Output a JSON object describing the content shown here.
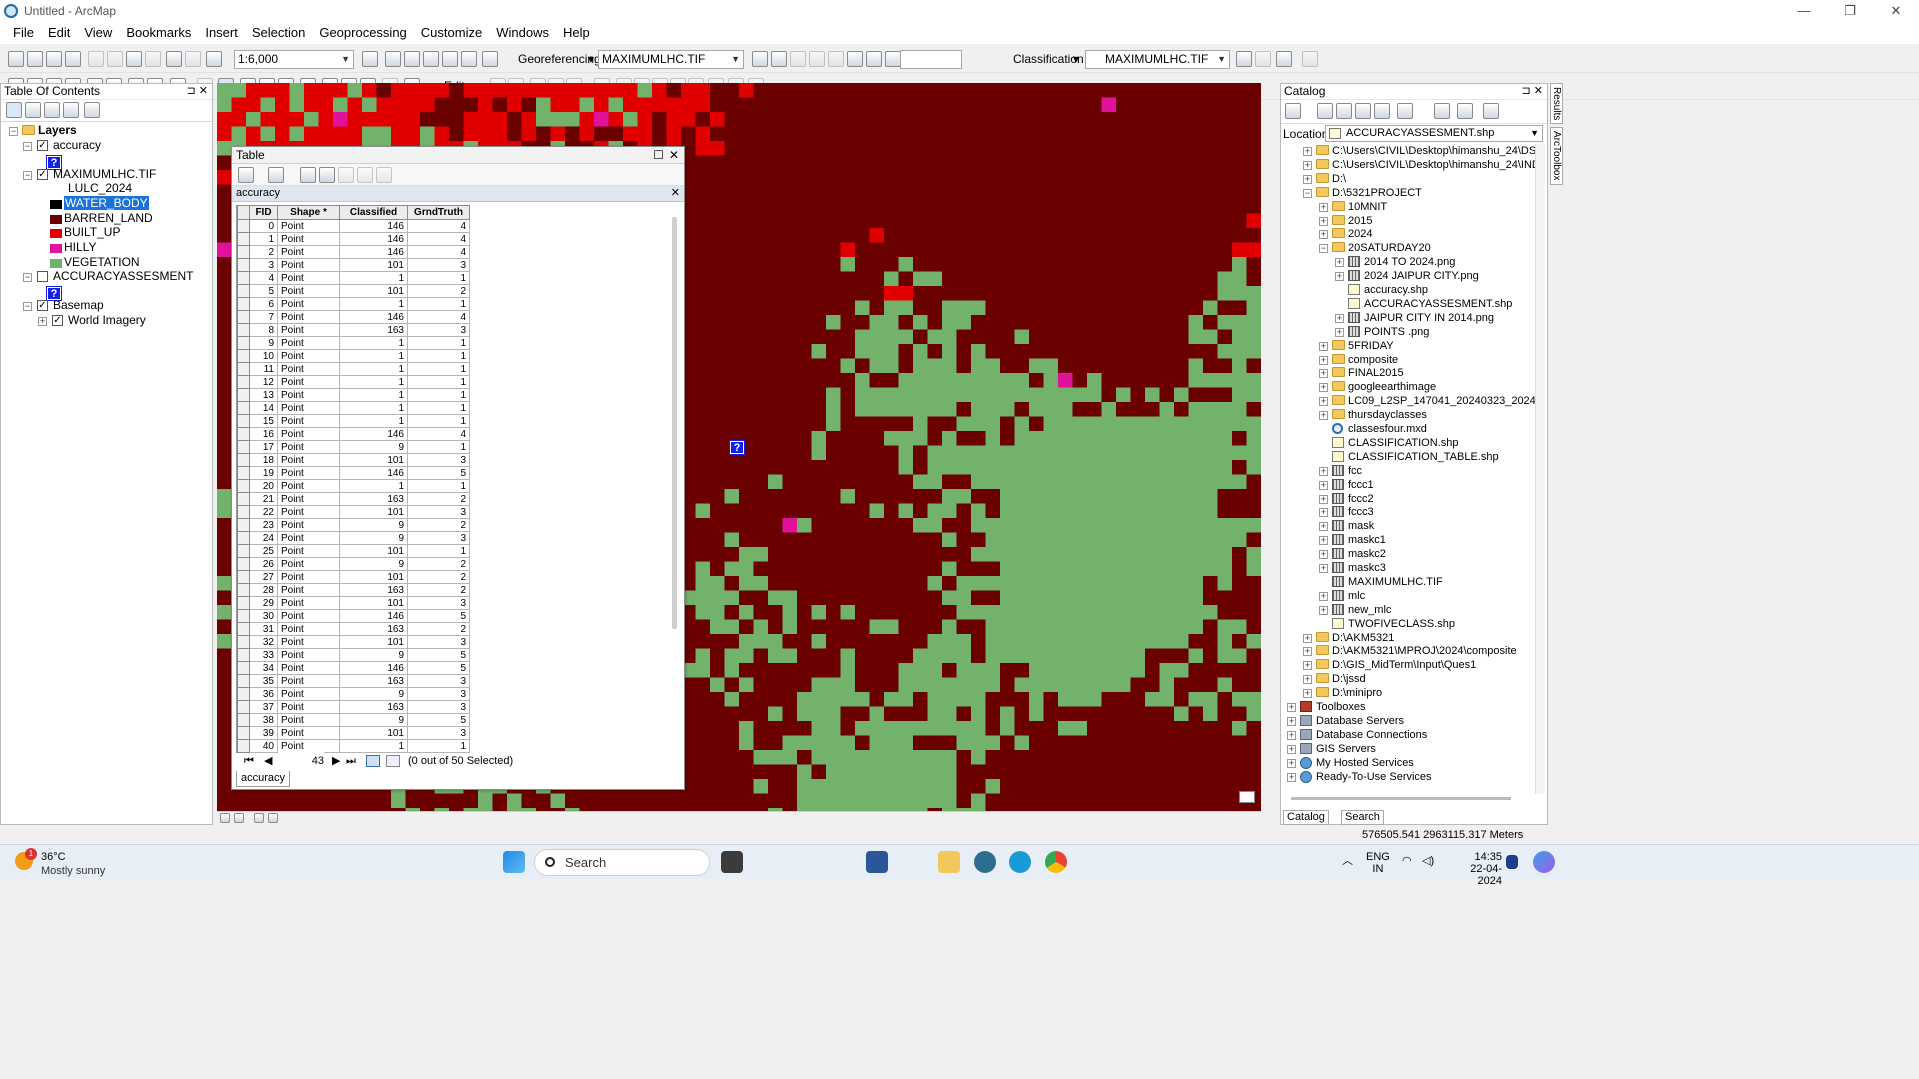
{
  "window": {
    "title": "Untitled - ArcMap",
    "controls": [
      "—",
      "❐",
      "✕"
    ]
  },
  "menu": [
    "File",
    "Edit",
    "View",
    "Bookmarks",
    "Insert",
    "Selection",
    "Geoprocessing",
    "Customize",
    "Windows",
    "Help"
  ],
  "toolbar": {
    "scale": "1:6,000",
    "georeferencing_label": "Georeferencing",
    "georef_layer": "MAXIMUMLHC.TIF",
    "classification_label": "Classification",
    "classification_layer": "MAXIMUMLHC.TIF",
    "editor_label": "Editor"
  },
  "toc": {
    "title": "Table Of Contents",
    "root": "Layers",
    "layers": [
      {
        "name": "accuracy",
        "checked": true
      },
      {
        "name": "MAXIMUMLHC.TIF",
        "checked": true,
        "field": "LULC_2024"
      },
      {
        "name": "ACCURACYASSESMENT",
        "checked": false
      },
      {
        "name": "Basemap",
        "checked": true
      },
      {
        "name": "World Imagery",
        "checked": true
      }
    ],
    "classes": [
      {
        "label": "WATER_BODY",
        "color": "#000000",
        "selected": true
      },
      {
        "label": "BARREN_LAND",
        "color": "#6b0000"
      },
      {
        "label": "BUILT_UP",
        "color": "#e00000"
      },
      {
        "label": "HILLY",
        "color": "#e0119b"
      },
      {
        "label": "VEGETATION",
        "color": "#72b26b"
      }
    ]
  },
  "table": {
    "title": "Table",
    "layer_tab": "accuracy",
    "columns": [
      "FID",
      "Shape *",
      "Classified",
      "GrndTruth"
    ],
    "rows": [
      [
        0,
        "Point",
        146,
        4
      ],
      [
        1,
        "Point",
        146,
        4
      ],
      [
        2,
        "Point",
        146,
        4
      ],
      [
        3,
        "Point",
        101,
        3
      ],
      [
        4,
        "Point",
        1,
        1
      ],
      [
        5,
        "Point",
        101,
        2
      ],
      [
        6,
        "Point",
        1,
        1
      ],
      [
        7,
        "Point",
        146,
        4
      ],
      [
        8,
        "Point",
        163,
        3
      ],
      [
        9,
        "Point",
        1,
        1
      ],
      [
        10,
        "Point",
        1,
        1
      ],
      [
        11,
        "Point",
        1,
        1
      ],
      [
        12,
        "Point",
        1,
        1
      ],
      [
        13,
        "Point",
        1,
        1
      ],
      [
        14,
        "Point",
        1,
        1
      ],
      [
        15,
        "Point",
        1,
        1
      ],
      [
        16,
        "Point",
        146,
        4
      ],
      [
        17,
        "Point",
        9,
        1
      ],
      [
        18,
        "Point",
        101,
        3
      ],
      [
        19,
        "Point",
        146,
        5
      ],
      [
        20,
        "Point",
        1,
        1
      ],
      [
        21,
        "Point",
        163,
        2
      ],
      [
        22,
        "Point",
        101,
        3
      ],
      [
        23,
        "Point",
        9,
        2
      ],
      [
        24,
        "Point",
        9,
        3
      ],
      [
        25,
        "Point",
        101,
        1
      ],
      [
        26,
        "Point",
        9,
        2
      ],
      [
        27,
        "Point",
        101,
        2
      ],
      [
        28,
        "Point",
        163,
        2
      ],
      [
        29,
        "Point",
        101,
        3
      ],
      [
        30,
        "Point",
        146,
        5
      ],
      [
        31,
        "Point",
        163,
        2
      ],
      [
        32,
        "Point",
        101,
        3
      ],
      [
        33,
        "Point",
        9,
        5
      ],
      [
        34,
        "Point",
        146,
        5
      ],
      [
        35,
        "Point",
        163,
        3
      ],
      [
        36,
        "Point",
        9,
        3
      ],
      [
        37,
        "Point",
        163,
        3
      ],
      [
        38,
        "Point",
        9,
        5
      ],
      [
        39,
        "Point",
        101,
        3
      ],
      [
        40,
        "Point",
        1,
        1
      ]
    ],
    "record_number": "43",
    "selection_status": "(0 out of 50 Selected)",
    "bottom_tab": "accuracy"
  },
  "catalog": {
    "title": "Catalog",
    "location_label": "Location:",
    "location": "ACCURACYASSESMENT.shp",
    "items": [
      {
        "label": "C:\\Users\\CIVIL\\Desktop\\himanshu_24\\DSMW",
        "icon": "folder",
        "level": 1,
        "exp": "+"
      },
      {
        "label": "C:\\Users\\CIVIL\\Desktop\\himanshu_24\\IND_adm",
        "icon": "folder",
        "level": 1,
        "exp": "+"
      },
      {
        "label": "D:\\",
        "icon": "folder",
        "level": 1,
        "exp": "+"
      },
      {
        "label": "D:\\5321PROJECT",
        "icon": "folder",
        "level": 1,
        "exp": "-"
      },
      {
        "label": "10MNIT",
        "icon": "folder",
        "level": 2,
        "exp": "+"
      },
      {
        "label": "2015",
        "icon": "folder",
        "level": 2,
        "exp": "+"
      },
      {
        "label": "2024",
        "icon": "folder",
        "level": 2,
        "exp": "+"
      },
      {
        "label": "20SATURDAY20",
        "icon": "folder",
        "level": 2,
        "exp": "-"
      },
      {
        "label": "2014 TO 2024.png",
        "icon": "raster",
        "level": 3,
        "exp": "+"
      },
      {
        "label": "2024 JAIPUR CITY.png",
        "icon": "raster",
        "level": 3,
        "exp": "+"
      },
      {
        "label": "accuracy.shp",
        "icon": "shp",
        "level": 3,
        "exp": ""
      },
      {
        "label": "ACCURACYASSESMENT.shp",
        "icon": "shp",
        "level": 3,
        "exp": ""
      },
      {
        "label": "JAIPUR CITY IN 2014.png",
        "icon": "raster",
        "level": 3,
        "exp": "+"
      },
      {
        "label": "POINTS .png",
        "icon": "raster",
        "level": 3,
        "exp": "+"
      },
      {
        "label": "5FRIDAY",
        "icon": "folder",
        "level": 2,
        "exp": "+"
      },
      {
        "label": "composite",
        "icon": "folder",
        "level": 2,
        "exp": "+"
      },
      {
        "label": "FINAL2015",
        "icon": "folder",
        "level": 2,
        "exp": "+"
      },
      {
        "label": "googleearthimage",
        "icon": "folder",
        "level": 2,
        "exp": "+"
      },
      {
        "label": "LC09_L2SP_147041_20240323_20240324_02_T1",
        "icon": "folder",
        "level": 2,
        "exp": "+"
      },
      {
        "label": "thursdayclasses",
        "icon": "folder",
        "level": 2,
        "exp": "+"
      },
      {
        "label": "classesfour.mxd",
        "icon": "mxd",
        "level": 2,
        "exp": ""
      },
      {
        "label": "CLASSIFICATION.shp",
        "icon": "shp",
        "level": 2,
        "exp": ""
      },
      {
        "label": "CLASSIFICATION_TABLE.shp",
        "icon": "shp",
        "level": 2,
        "exp": ""
      },
      {
        "label": "fcc",
        "icon": "raster",
        "level": 2,
        "exp": "+"
      },
      {
        "label": "fccc1",
        "icon": "raster",
        "level": 2,
        "exp": "+"
      },
      {
        "label": "fccc2",
        "icon": "raster",
        "level": 2,
        "exp": "+"
      },
      {
        "label": "fccc3",
        "icon": "raster",
        "level": 2,
        "exp": "+"
      },
      {
        "label": "mask",
        "icon": "raster",
        "level": 2,
        "exp": "+"
      },
      {
        "label": "maskc1",
        "icon": "raster",
        "level": 2,
        "exp": "+"
      },
      {
        "label": "maskc2",
        "icon": "raster",
        "level": 2,
        "exp": "+"
      },
      {
        "label": "maskc3",
        "icon": "raster",
        "level": 2,
        "exp": "+"
      },
      {
        "label": "MAXIMUMLHC.TIF",
        "icon": "raster",
        "level": 2,
        "exp": ""
      },
      {
        "label": "mlc",
        "icon": "raster",
        "level": 2,
        "exp": "+"
      },
      {
        "label": "new_mlc",
        "icon": "raster",
        "level": 2,
        "exp": "+"
      },
      {
        "label": "TWOFIVECLASS.shp",
        "icon": "shp",
        "level": 2,
        "exp": ""
      },
      {
        "label": "D:\\AKM5321",
        "icon": "folder",
        "level": 1,
        "exp": "+"
      },
      {
        "label": "D:\\AKM5321\\MPROJ\\2024\\composite",
        "icon": "folder",
        "level": 1,
        "exp": "+"
      },
      {
        "label": "D:\\GIS_MidTerm\\Input\\Ques1",
        "icon": "folder",
        "level": 1,
        "exp": "+"
      },
      {
        "label": "D:\\jssd",
        "icon": "folder",
        "level": 1,
        "exp": "+"
      },
      {
        "label": "D:\\minipro",
        "icon": "folder",
        "level": 1,
        "exp": "+"
      },
      {
        "label": "Toolboxes",
        "icon": "tbox",
        "level": 0,
        "exp": "+"
      },
      {
        "label": "Database Servers",
        "icon": "dbs",
        "level": 0,
        "exp": "+"
      },
      {
        "label": "Database Connections",
        "icon": "dbs",
        "level": 0,
        "exp": "+"
      },
      {
        "label": "GIS Servers",
        "icon": "dbs",
        "level": 0,
        "exp": "+"
      },
      {
        "label": "My Hosted Services",
        "icon": "globe",
        "level": 0,
        "exp": "+"
      },
      {
        "label": "Ready-To-Use Services",
        "icon": "globe",
        "level": 0,
        "exp": "+"
      }
    ],
    "tabs": [
      "Catalog",
      "Search"
    ]
  },
  "side_tabs": [
    "Results",
    "ArcToolbox"
  ],
  "status": {
    "coordinates": "576505.541  2963115.317 Meters"
  },
  "taskbar": {
    "temperature": "36°C",
    "weather": "Mostly sunny",
    "weather_badge": "1",
    "search_placeholder": "Search",
    "language": "ENG",
    "region": "IN",
    "time": "14:35",
    "date": "22-04-2024"
  },
  "map_palette": {
    "barren": "#6b0000",
    "built_up": "#e00000",
    "vegetation": "#72b26b",
    "hilly": "#e0119b"
  }
}
